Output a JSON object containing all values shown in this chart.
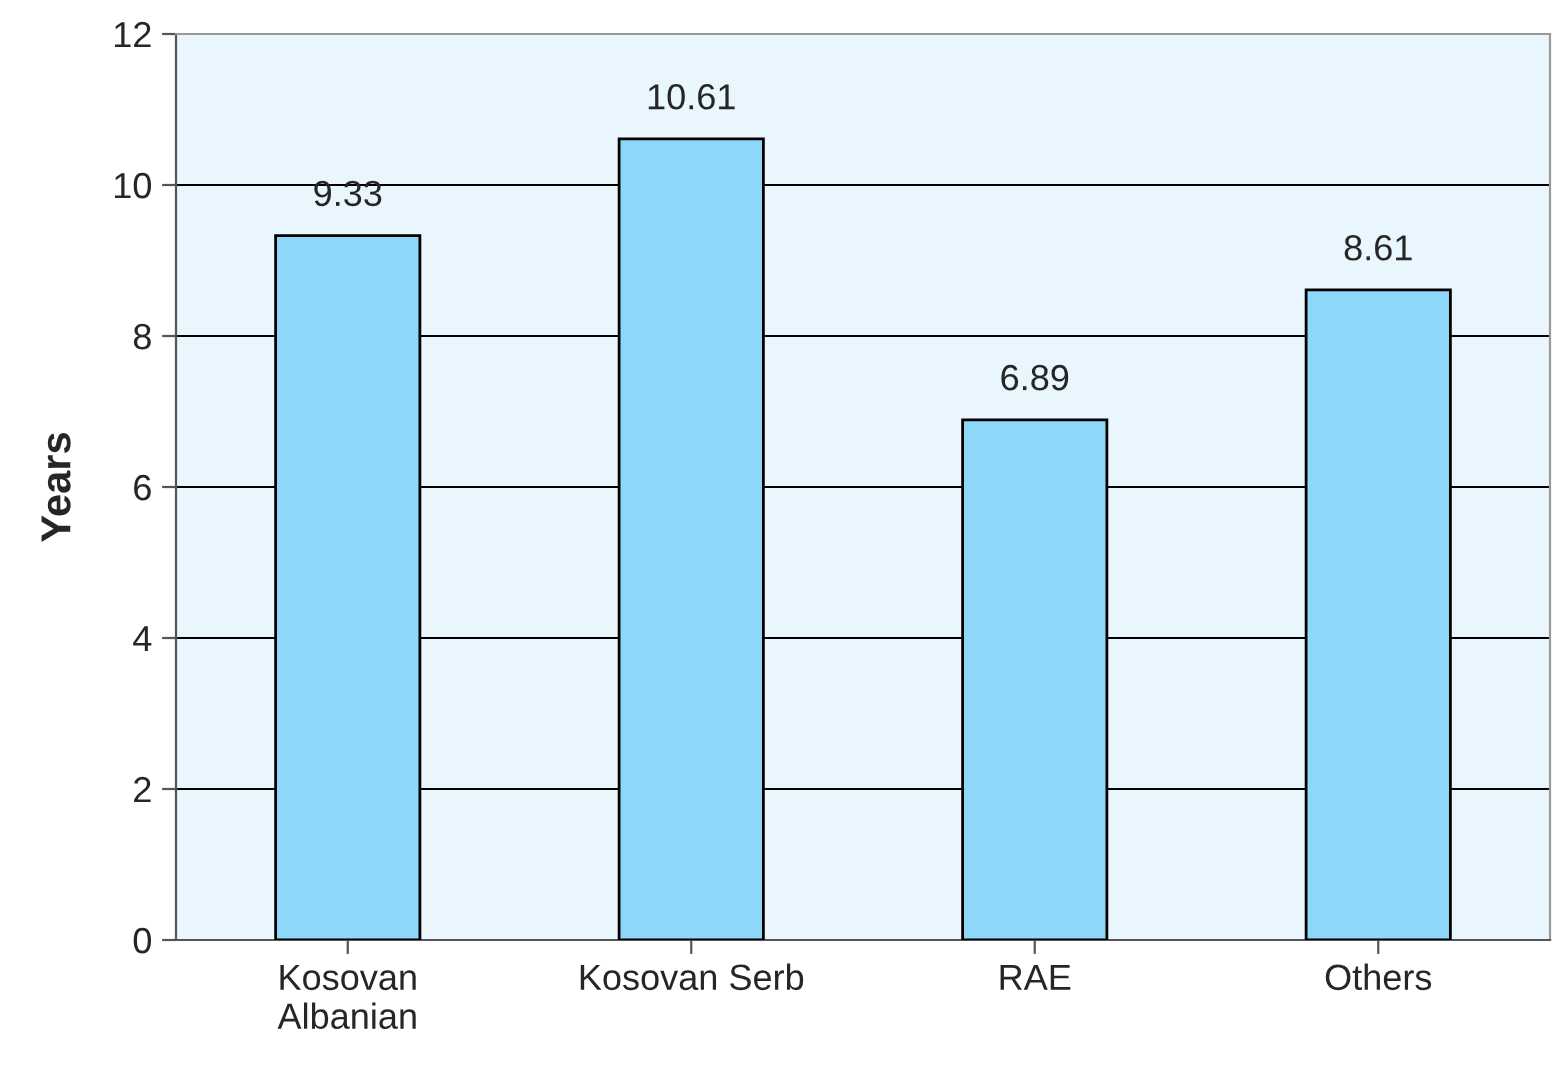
{
  "chart_data": {
    "type": "bar",
    "categories": [
      "Kosovan\nAlbanian",
      "Kosovan Serb",
      "RAE",
      "Others"
    ],
    "values": [
      9.33,
      10.61,
      6.89,
      8.61
    ],
    "color": "#8dd8f8",
    "ylabel": "Years",
    "ylim": [
      0,
      12
    ],
    "yticks": [
      0,
      2,
      4,
      6,
      8,
      10,
      12
    ],
    "grid": "y",
    "data_labels": true,
    "legend": false
  }
}
